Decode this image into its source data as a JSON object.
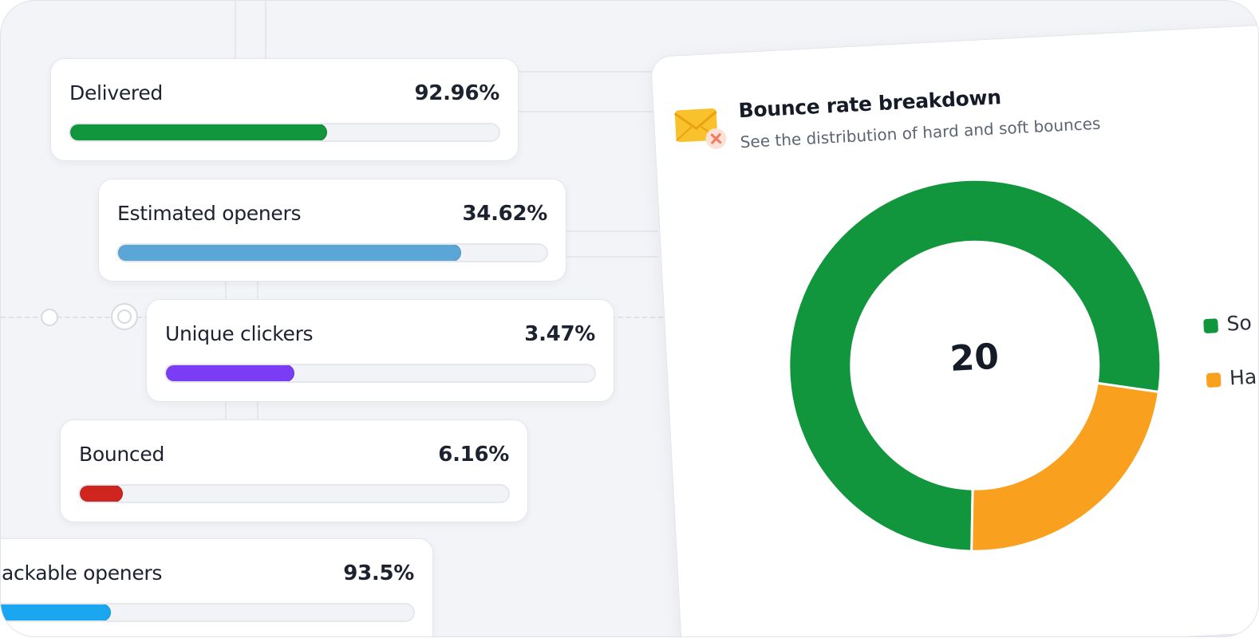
{
  "metrics": [
    {
      "label": "Delivered",
      "value": "92.96%",
      "progress": 0.6,
      "color": "#11963d"
    },
    {
      "label": "Estimated openers",
      "value": "34.62%",
      "progress": 0.8,
      "color": "#5aa6d6"
    },
    {
      "label": "Unique clickers",
      "value": "3.47%",
      "progress": 0.3,
      "color": "#7b3cf5"
    },
    {
      "label": "Bounced",
      "value": "6.16%",
      "progress": 0.1,
      "color": "#d0241f"
    },
    {
      "label": "ackable openers",
      "value": "93.5%",
      "progress": 0.28,
      "color": "#1aa7f0"
    }
  ],
  "bounce_panel": {
    "title": "Bounce rate breakdown",
    "subtitle": "See the distribution of hard and soft bounces",
    "icon": "envelope-error-icon",
    "total": "20",
    "legend": [
      {
        "label": "So",
        "color": "#11963d"
      },
      {
        "label": "Ha",
        "color": "#f9a11e"
      }
    ]
  },
  "chart_data": {
    "type": "pie",
    "variant": "donut",
    "center_label": "20",
    "slices": [
      {
        "legend_label": "So",
        "value": 0.77,
        "color": "#11963d"
      },
      {
        "legend_label": "Ha",
        "value": 0.23,
        "color": "#f9a11e"
      }
    ]
  }
}
